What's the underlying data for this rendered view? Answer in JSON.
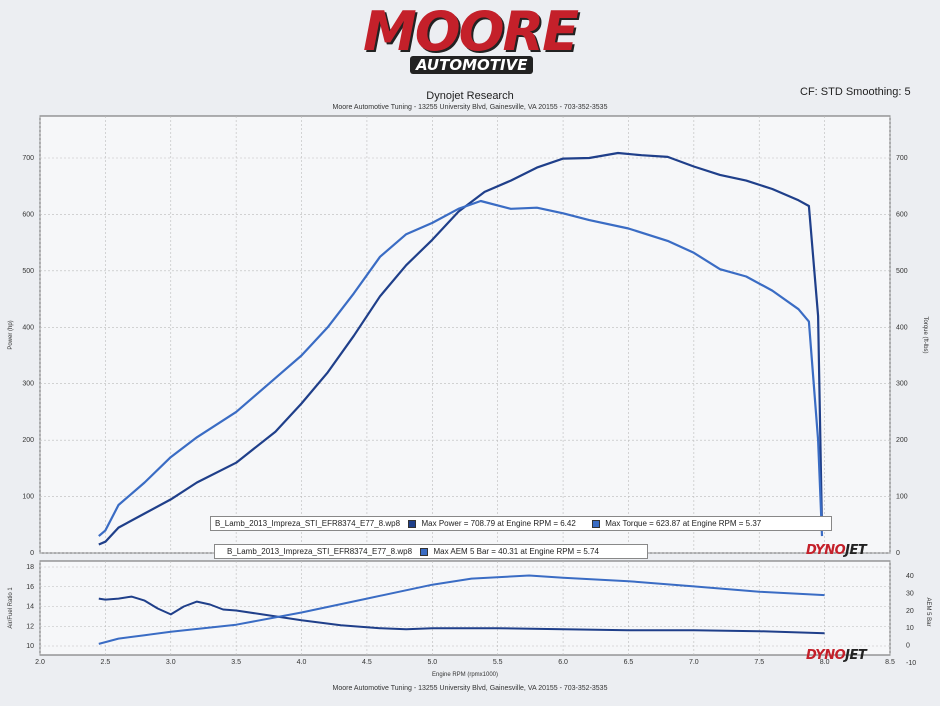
{
  "logo": {
    "main": "MOORE",
    "sub": "AUTOMOTIVE"
  },
  "header": {
    "title": "Dynojet Research",
    "subtitle": "Moore Automotive Tuning - 13255 University Blvd, Gainesville, VA 20155 - 703-352-3535",
    "cf": "CF: STD Smoothing: 5"
  },
  "footer": "Moore Automotive Tuning - 13255 University Blvd, Gainesville, VA 20155 - 703-352-3535",
  "brand": {
    "dyno": "DYNO",
    "jet": "JET"
  },
  "colors": {
    "power": "#1f3f8a",
    "torque": "#3a6cc4",
    "afr": "#1f3f8a",
    "aem": "#3a6cc4"
  },
  "legend": {
    "run1_file": "B_Lamb_2013_Impreza_STI_EFR8374_E77_8.wp8",
    "run1_power": "Max Power = 708.79 at Engine RPM = 6.42",
    "run1_torque": "Max Torque = 623.87 at Engine RPM = 5.37",
    "run2_file": "B_Lamb_2013_Impreza_STI_EFR8374_E77_8.wp8",
    "run2_aem": "Max AEM 5 Bar = 40.31 at Engine RPM = 5.74"
  },
  "chart_data": [
    {
      "type": "line",
      "xlabel": "",
      "ylabel": "Power (hp)",
      "y2label": "Torque (ft-lbs)",
      "xlim": [
        2.0,
        8.5
      ],
      "ylim": [
        0,
        700
      ],
      "y2lim": [
        0,
        700
      ],
      "grid": true,
      "xticks": [
        "2.0",
        "2.5",
        "3.0",
        "3.5",
        "4.0",
        "4.5",
        "5.0",
        "5.5",
        "6.0",
        "6.5",
        "7.0",
        "7.5",
        "8.0",
        "8.5"
      ],
      "yticks": [
        "0",
        "100",
        "200",
        "300",
        "400",
        "500",
        "600",
        "700"
      ],
      "series": [
        {
          "name": "Power",
          "axis": "left",
          "x": [
            2.45,
            2.5,
            2.6,
            2.8,
            3.0,
            3.2,
            3.5,
            3.8,
            4.0,
            4.2,
            4.4,
            4.6,
            4.8,
            5.0,
            5.2,
            5.4,
            5.6,
            5.8,
            6.0,
            6.2,
            6.42,
            6.6,
            6.8,
            7.0,
            7.2,
            7.4,
            7.6,
            7.8,
            7.88,
            7.95,
            7.98
          ],
          "y": [
            15,
            20,
            45,
            70,
            95,
            125,
            160,
            215,
            265,
            320,
            385,
            455,
            510,
            555,
            605,
            640,
            660,
            683,
            699,
            700,
            708.79,
            705,
            702,
            685,
            670,
            660,
            645,
            625,
            615,
            420,
            40
          ]
        },
        {
          "name": "Torque",
          "axis": "right",
          "x": [
            2.45,
            2.5,
            2.6,
            2.8,
            3.0,
            3.2,
            3.5,
            3.8,
            4.0,
            4.2,
            4.4,
            4.6,
            4.8,
            5.0,
            5.2,
            5.37,
            5.6,
            5.8,
            6.0,
            6.2,
            6.5,
            6.8,
            7.0,
            7.2,
            7.4,
            7.6,
            7.8,
            7.88,
            7.95,
            7.98
          ],
          "y": [
            30,
            40,
            85,
            125,
            170,
            205,
            250,
            310,
            350,
            400,
            460,
            525,
            565,
            585,
            610,
            623.87,
            610,
            612,
            602,
            590,
            575,
            553,
            532,
            503,
            490,
            465,
            432,
            410,
            200,
            30
          ]
        }
      ]
    },
    {
      "type": "line",
      "xlabel": "Engine RPM (rpmx1000)",
      "ylabel": "Air/Fuel Ratio 1",
      "y2label": "AEM 5 Bar",
      "xlim": [
        2.0,
        8.5
      ],
      "ylim": [
        10,
        18
      ],
      "y2lim": [
        -10,
        40
      ],
      "grid": true,
      "yticks": [
        "10",
        "12",
        "14",
        "16",
        "18"
      ],
      "y2ticks": [
        "-10",
        "0",
        "10",
        "20",
        "30",
        "40"
      ],
      "series": [
        {
          "name": "Air/Fuel Ratio 1",
          "axis": "left",
          "x": [
            2.45,
            2.5,
            2.6,
            2.7,
            2.8,
            2.9,
            3.0,
            3.1,
            3.2,
            3.3,
            3.4,
            3.5,
            3.7,
            4.0,
            4.3,
            4.6,
            4.8,
            5.0,
            5.5,
            6.0,
            6.5,
            7.0,
            7.5,
            8.0
          ],
          "y": [
            14.8,
            14.7,
            14.8,
            15.0,
            14.6,
            13.8,
            13.2,
            14.0,
            14.5,
            14.2,
            13.7,
            13.6,
            13.2,
            12.6,
            12.1,
            11.8,
            11.7,
            11.8,
            11.8,
            11.7,
            11.6,
            11.6,
            11.5,
            11.3
          ]
        },
        {
          "name": "AEM 5 Bar",
          "axis": "right",
          "x": [
            2.45,
            2.6,
            2.8,
            3.0,
            3.5,
            4.0,
            4.5,
            5.0,
            5.3,
            5.74,
            6.0,
            6.5,
            7.0,
            7.5,
            8.0
          ],
          "y": [
            1,
            4,
            6,
            8,
            12,
            19,
            27,
            35,
            38.5,
            40.31,
            39,
            37,
            34,
            31,
            29
          ]
        }
      ]
    }
  ]
}
